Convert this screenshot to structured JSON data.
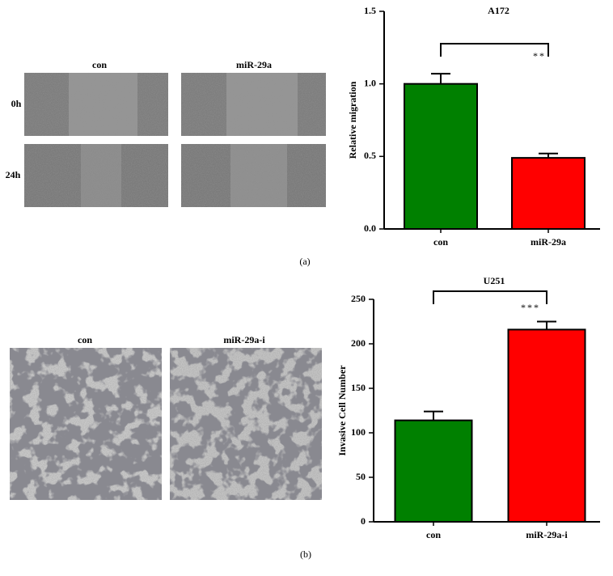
{
  "figure": {
    "panels": [
      {
        "label": "(a)",
        "columns": [
          "con",
          "miR-29a"
        ],
        "rows": [
          "0h",
          "24h"
        ]
      },
      {
        "label": "(b)",
        "columns": [
          "con",
          "miR-29a-i"
        ]
      }
    ]
  },
  "chart_data": [
    {
      "type": "bar",
      "title": "A172",
      "y_label": "Relative migration",
      "categories": [
        "con",
        "miR-29a"
      ],
      "values": [
        1.0,
        0.49
      ],
      "errors": [
        0.07,
        0.03
      ],
      "colors": [
        "#008000",
        "#ff0000"
      ],
      "annotation": "**",
      "ylim": [
        0,
        1.5
      ],
      "yticks": [
        {
          "value": 0,
          "label": "0.0"
        },
        0.5,
        {
          "value": 1,
          "label": "1.0"
        },
        1.5
      ]
    },
    {
      "type": "bar",
      "title": "U251",
      "y_label": "Invasive Cell Number",
      "categories": [
        "con",
        "miR-29a-i"
      ],
      "values": [
        114,
        216
      ],
      "errors": [
        10,
        9
      ],
      "colors": [
        "#008000",
        "#ff0000"
      ],
      "annotation": "***",
      "ylim": [
        0,
        250
      ],
      "yticks": [
        0,
        50,
        100,
        150,
        200,
        250
      ]
    }
  ]
}
